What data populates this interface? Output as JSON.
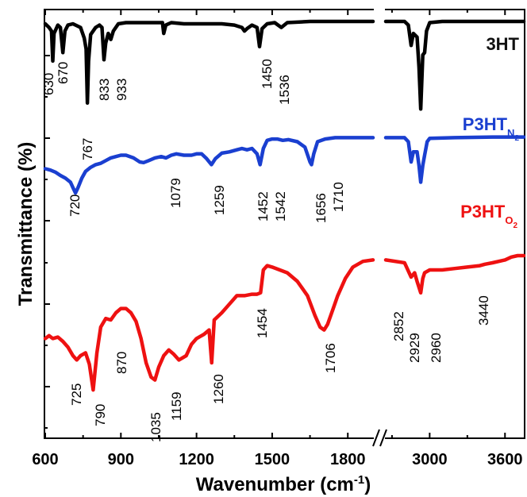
{
  "chart_data": {
    "type": "line",
    "xlabel": "Wavenumber (cm",
    "xlabel_sup": "-1",
    "xlabel_end": ")",
    "ylabel": "Transmittance (%)",
    "x_ticks_left": [
      "600",
      "900",
      "1200",
      "1500",
      "1800"
    ],
    "x_ticks_right": [
      "3000",
      "3600"
    ],
    "x_axis_break": true,
    "x_range_left": [
      600,
      1900
    ],
    "x_range_right": [
      2650,
      3750
    ],
    "y_ticks_labeled": false,
    "grid": false,
    "series": [
      {
        "name": "3HT",
        "name_sub": "",
        "name_subsub": "",
        "color": "#000000",
        "peaks": [
          "630",
          "670",
          "767",
          "833",
          "933",
          "1450",
          "1536"
        ],
        "points": [
          [
            600,
            0.96
          ],
          [
            615,
            0.93
          ],
          [
            625,
            0.9
          ],
          [
            630,
            0.65
          ],
          [
            635,
            0.88
          ],
          [
            650,
            0.95
          ],
          [
            660,
            0.93
          ],
          [
            670,
            0.72
          ],
          [
            678,
            0.9
          ],
          [
            690,
            0.95
          ],
          [
            710,
            0.96
          ],
          [
            740,
            0.93
          ],
          [
            755,
            0.84
          ],
          [
            762,
            0.75
          ],
          [
            767,
            0.3
          ],
          [
            772,
            0.65
          ],
          [
            780,
            0.87
          ],
          [
            800,
            0.93
          ],
          [
            815,
            0.95
          ],
          [
            825,
            0.93
          ],
          [
            833,
            0.66
          ],
          [
            840,
            0.8
          ],
          [
            850,
            0.88
          ],
          [
            860,
            0.83
          ],
          [
            870,
            0.9
          ],
          [
            890,
            0.96
          ],
          [
            920,
            0.97
          ],
          [
            933,
            0.97
          ],
          [
            960,
            0.97
          ],
          [
            1000,
            0.97
          ],
          [
            1050,
            0.97
          ],
          [
            1065,
            0.97
          ],
          [
            1070,
            0.88
          ],
          [
            1078,
            0.95
          ],
          [
            1100,
            0.97
          ],
          [
            1150,
            0.96
          ],
          [
            1200,
            0.96
          ],
          [
            1250,
            0.96
          ],
          [
            1300,
            0.96
          ],
          [
            1350,
            0.95
          ],
          [
            1380,
            0.93
          ],
          [
            1390,
            0.9
          ],
          [
            1400,
            0.92
          ],
          [
            1420,
            0.95
          ],
          [
            1440,
            0.93
          ],
          [
            1450,
            0.77
          ],
          [
            1460,
            0.92
          ],
          [
            1480,
            0.96
          ],
          [
            1510,
            0.97
          ],
          [
            1536,
            0.93
          ],
          [
            1560,
            0.97
          ],
          [
            1650,
            0.98
          ],
          [
            1750,
            0.98
          ],
          [
            1850,
            0.98
          ],
          [
            1900,
            0.98
          ],
          [
            2650,
            0.98
          ],
          [
            2800,
            0.98
          ],
          [
            2830,
            0.95
          ],
          [
            2852,
            0.78
          ],
          [
            2870,
            0.88
          ],
          [
            2900,
            0.85
          ],
          [
            2915,
            0.6
          ],
          [
            2929,
            0.25
          ],
          [
            2945,
            0.7
          ],
          [
            2960,
            0.72
          ],
          [
            2975,
            0.9
          ],
          [
            3000,
            0.97
          ],
          [
            3100,
            0.98
          ],
          [
            3300,
            0.98
          ],
          [
            3500,
            0.98
          ],
          [
            3750,
            0.98
          ]
        ]
      },
      {
        "name": "P3HT",
        "name_sub": "N",
        "name_subsub": "2",
        "color": "#1a3fd0",
        "peaks": [
          "720",
          "1079",
          "1259",
          "1452",
          "1542",
          "1656",
          "1710"
        ],
        "points": [
          [
            600,
            0.5
          ],
          [
            620,
            0.48
          ],
          [
            640,
            0.45
          ],
          [
            660,
            0.4
          ],
          [
            680,
            0.36
          ],
          [
            700,
            0.3
          ],
          [
            710,
            0.22
          ],
          [
            720,
            0.14
          ],
          [
            730,
            0.22
          ],
          [
            745,
            0.36
          ],
          [
            760,
            0.46
          ],
          [
            780,
            0.52
          ],
          [
            800,
            0.56
          ],
          [
            820,
            0.58
          ],
          [
            840,
            0.62
          ],
          [
            860,
            0.66
          ],
          [
            880,
            0.68
          ],
          [
            900,
            0.7
          ],
          [
            920,
            0.7
          ],
          [
            950,
            0.66
          ],
          [
            975,
            0.6
          ],
          [
            990,
            0.59
          ],
          [
            1010,
            0.62
          ],
          [
            1035,
            0.66
          ],
          [
            1060,
            0.68
          ],
          [
            1079,
            0.66
          ],
          [
            1100,
            0.7
          ],
          [
            1120,
            0.72
          ],
          [
            1150,
            0.7
          ],
          [
            1180,
            0.7
          ],
          [
            1200,
            0.72
          ],
          [
            1220,
            0.72
          ],
          [
            1240,
            0.65
          ],
          [
            1259,
            0.56
          ],
          [
            1275,
            0.65
          ],
          [
            1300,
            0.73
          ],
          [
            1330,
            0.75
          ],
          [
            1360,
            0.78
          ],
          [
            1380,
            0.8
          ],
          [
            1400,
            0.78
          ],
          [
            1420,
            0.8
          ],
          [
            1440,
            0.72
          ],
          [
            1452,
            0.56
          ],
          [
            1465,
            0.8
          ],
          [
            1480,
            0.92
          ],
          [
            1500,
            0.94
          ],
          [
            1520,
            0.94
          ],
          [
            1542,
            0.92
          ],
          [
            1565,
            0.93
          ],
          [
            1600,
            0.9
          ],
          [
            1630,
            0.82
          ],
          [
            1650,
            0.6
          ],
          [
            1656,
            0.56
          ],
          [
            1665,
            0.72
          ],
          [
            1680,
            0.9
          ],
          [
            1710,
            0.94
          ],
          [
            1750,
            0.96
          ],
          [
            1850,
            0.96
          ],
          [
            1900,
            0.96
          ],
          [
            2650,
            0.96
          ],
          [
            2800,
            0.96
          ],
          [
            2830,
            0.9
          ],
          [
            2852,
            0.6
          ],
          [
            2870,
            0.75
          ],
          [
            2900,
            0.75
          ],
          [
            2915,
            0.55
          ],
          [
            2929,
            0.3
          ],
          [
            2945,
            0.55
          ],
          [
            2960,
            0.7
          ],
          [
            2980,
            0.9
          ],
          [
            3000,
            0.95
          ],
          [
            3200,
            0.96
          ],
          [
            3500,
            0.97
          ],
          [
            3750,
            0.97
          ]
        ]
      },
      {
        "name": "P3HT",
        "name_sub": "O",
        "name_subsub": "2",
        "color": "#ee1111",
        "peaks": [
          "725",
          "790",
          "870",
          "1035",
          "1159",
          "1260",
          "1454",
          "1706",
          "2852",
          "2929",
          "2960",
          "3440"
        ],
        "points": [
          [
            600,
            0.42
          ],
          [
            615,
            0.44
          ],
          [
            630,
            0.42
          ],
          [
            650,
            0.43
          ],
          [
            670,
            0.4
          ],
          [
            690,
            0.36
          ],
          [
            710,
            0.3
          ],
          [
            725,
            0.27
          ],
          [
            740,
            0.3
          ],
          [
            760,
            0.32
          ],
          [
            775,
            0.24
          ],
          [
            790,
            0.06
          ],
          [
            805,
            0.32
          ],
          [
            820,
            0.5
          ],
          [
            840,
            0.56
          ],
          [
            860,
            0.55
          ],
          [
            880,
            0.6
          ],
          [
            900,
            0.63
          ],
          [
            920,
            0.63
          ],
          [
            940,
            0.6
          ],
          [
            960,
            0.54
          ],
          [
            980,
            0.42
          ],
          [
            1000,
            0.25
          ],
          [
            1020,
            0.15
          ],
          [
            1035,
            0.13
          ],
          [
            1050,
            0.22
          ],
          [
            1070,
            0.3
          ],
          [
            1090,
            0.34
          ],
          [
            1110,
            0.31
          ],
          [
            1130,
            0.27
          ],
          [
            1159,
            0.3
          ],
          [
            1180,
            0.38
          ],
          [
            1200,
            0.42
          ],
          [
            1230,
            0.45
          ],
          [
            1250,
            0.48
          ],
          [
            1260,
            0.25
          ],
          [
            1270,
            0.55
          ],
          [
            1300,
            0.6
          ],
          [
            1330,
            0.66
          ],
          [
            1360,
            0.72
          ],
          [
            1390,
            0.72
          ],
          [
            1420,
            0.73
          ],
          [
            1440,
            0.73
          ],
          [
            1454,
            0.74
          ],
          [
            1465,
            0.9
          ],
          [
            1480,
            0.93
          ],
          [
            1500,
            0.92
          ],
          [
            1530,
            0.9
          ],
          [
            1560,
            0.88
          ],
          [
            1600,
            0.82
          ],
          [
            1640,
            0.72
          ],
          [
            1670,
            0.58
          ],
          [
            1690,
            0.5
          ],
          [
            1706,
            0.48
          ],
          [
            1720,
            0.52
          ],
          [
            1740,
            0.62
          ],
          [
            1760,
            0.72
          ],
          [
            1790,
            0.84
          ],
          [
            1820,
            0.92
          ],
          [
            1860,
            0.96
          ],
          [
            1900,
            0.97
          ],
          [
            2650,
            0.97
          ],
          [
            2800,
            0.95
          ],
          [
            2852,
            0.85
          ],
          [
            2880,
            0.88
          ],
          [
            2900,
            0.82
          ],
          [
            2929,
            0.74
          ],
          [
            2945,
            0.84
          ],
          [
            2960,
            0.88
          ],
          [
            3000,
            0.9
          ],
          [
            3100,
            0.9
          ],
          [
            3200,
            0.91
          ],
          [
            3300,
            0.92
          ],
          [
            3400,
            0.93
          ],
          [
            3440,
            0.94
          ],
          [
            3500,
            0.95
          ],
          [
            3600,
            0.97
          ],
          [
            3650,
            0.99
          ],
          [
            3700,
            1.0
          ],
          [
            3750,
            1.0
          ]
        ]
      }
    ]
  }
}
